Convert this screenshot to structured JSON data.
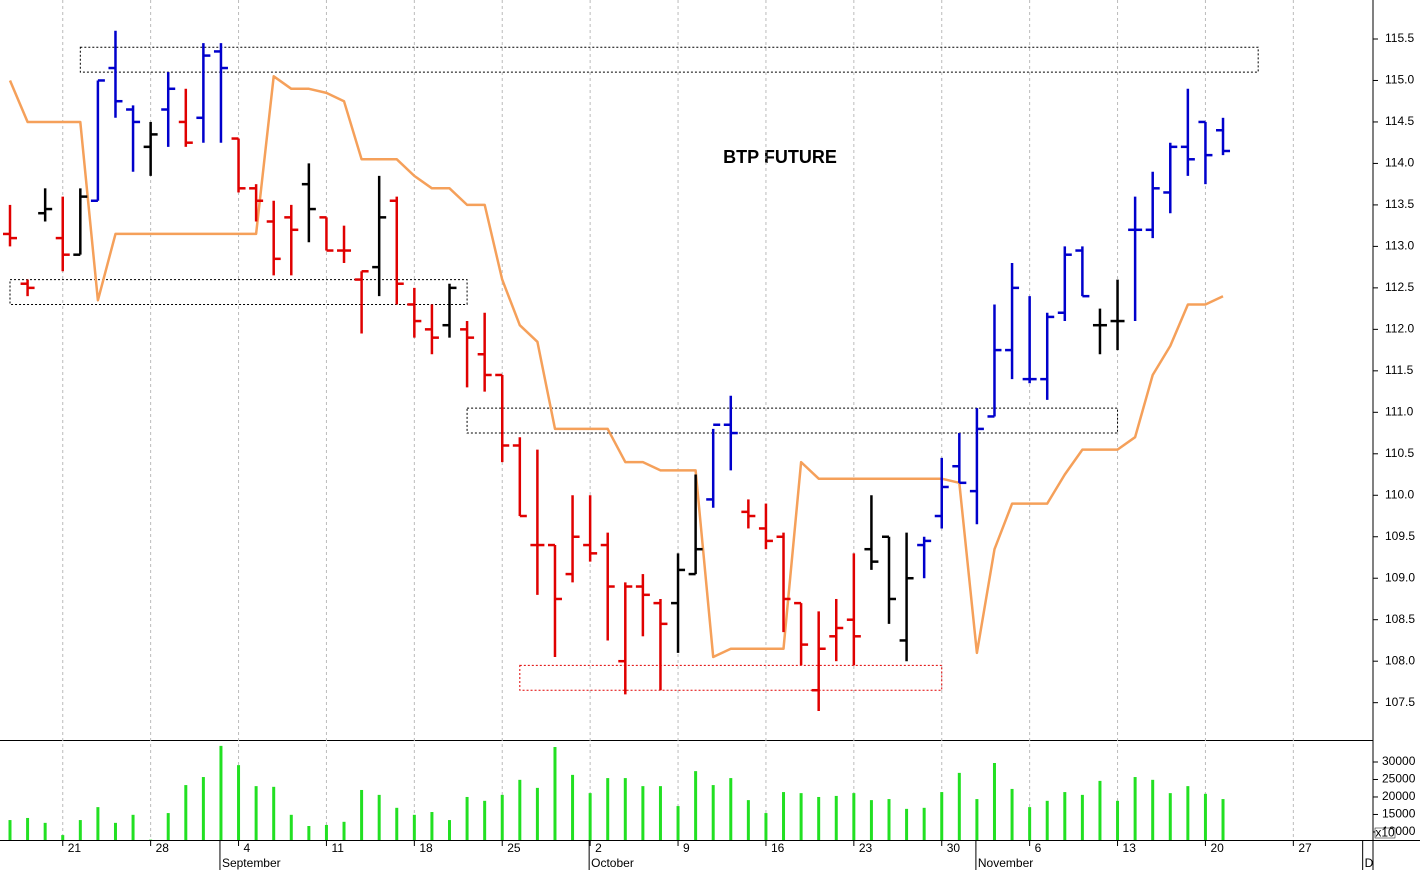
{
  "chart_data": {
    "type": "ohlc",
    "title": "BTP FUTURE",
    "categories": [
      null,
      null,
      null,
      "21",
      null,
      null,
      null,
      null,
      "28",
      null,
      null,
      null,
      null,
      "4",
      null,
      null,
      null,
      null,
      "11",
      null,
      null,
      null,
      null,
      "18",
      null,
      null,
      null,
      null,
      "25",
      null,
      null,
      null,
      null,
      "2",
      null,
      null,
      null,
      null,
      "9",
      null,
      null,
      null,
      null,
      "16",
      null,
      null,
      null,
      null,
      "23",
      null,
      null,
      null,
      null,
      "30",
      null,
      null,
      null,
      null,
      "6",
      null,
      null,
      null,
      null,
      "13",
      null,
      null,
      null,
      null,
      "20",
      null,
      null,
      null,
      null,
      "27",
      null,
      null,
      null,
      null
    ],
    "months": [
      null,
      null,
      null,
      null,
      null,
      null,
      null,
      null,
      null,
      null,
      null,
      null,
      "September",
      null,
      null,
      null,
      null,
      null,
      null,
      null,
      null,
      null,
      null,
      null,
      null,
      null,
      null,
      null,
      null,
      null,
      null,
      null,
      null,
      "October",
      null,
      null,
      null,
      null,
      null,
      null,
      null,
      null,
      null,
      null,
      null,
      null,
      null,
      null,
      null,
      null,
      null,
      null,
      null,
      null,
      null,
      "November",
      null,
      null,
      null,
      null,
      null,
      null,
      null,
      null,
      null,
      null,
      null,
      null,
      null,
      null,
      null,
      null,
      null,
      null,
      null,
      null,
      null,
      "D"
    ],
    "high": [
      113.5,
      112.6,
      113.7,
      113.6,
      113.7,
      115.0,
      115.6,
      114.7,
      114.5,
      115.1,
      114.9,
      115.45,
      115.45,
      114.3,
      113.75,
      113.55,
      113.5,
      114.0,
      113.35,
      113.25,
      112.7,
      113.85,
      113.6,
      112.5,
      112.3,
      112.55,
      112.1,
      112.2,
      111.45,
      110.7,
      110.55,
      109.4,
      110.0,
      110.0,
      109.55,
      108.95,
      109.05,
      108.75,
      109.3,
      110.25,
      110.8,
      111.2,
      109.95,
      109.9,
      109.55,
      108.7,
      108.6,
      108.75,
      109.3,
      110.0,
      109.5,
      109.55,
      109.5,
      110.45,
      110.75,
      111.05,
      112.3,
      112.8,
      112.4,
      112.2,
      113.0,
      113.0,
      112.25,
      112.6,
      113.6,
      113.9,
      114.25,
      114.9,
      114.5,
      114.55,
      null,
      null,
      null,
      null,
      null,
      null,
      null,
      null
    ],
    "low": [
      113.0,
      112.4,
      113.3,
      112.7,
      112.9,
      113.55,
      114.55,
      113.9,
      113.85,
      114.2,
      114.2,
      114.25,
      114.25,
      113.65,
      113.3,
      112.65,
      112.65,
      113.05,
      112.95,
      112.8,
      111.95,
      112.4,
      112.3,
      111.9,
      111.7,
      111.9,
      111.3,
      111.25,
      110.4,
      109.75,
      108.8,
      108.05,
      108.95,
      109.2,
      108.25,
      107.6,
      108.3,
      107.65,
      108.1,
      109.05,
      109.85,
      110.3,
      109.6,
      109.35,
      108.35,
      107.95,
      107.4,
      108.0,
      107.95,
      109.1,
      108.45,
      108.0,
      109.0,
      109.6,
      110.15,
      109.65,
      110.95,
      111.4,
      111.35,
      111.15,
      112.1,
      112.4,
      111.7,
      111.75,
      112.1,
      113.1,
      113.4,
      113.85,
      113.75,
      114.1,
      null,
      null,
      null,
      null,
      null,
      null,
      null,
      null
    ],
    "open": [
      113.15,
      112.55,
      113.4,
      113.1,
      112.9,
      113.55,
      115.15,
      114.65,
      114.2,
      114.65,
      114.5,
      114.55,
      115.35,
      114.3,
      113.7,
      113.3,
      113.35,
      113.75,
      113.35,
      112.95,
      112.6,
      112.75,
      113.55,
      112.3,
      112.0,
      112.05,
      112.0,
      111.7,
      111.45,
      110.6,
      109.4,
      109.4,
      109.05,
      109.4,
      109.4,
      108.0,
      108.9,
      108.7,
      108.7,
      109.05,
      109.95,
      110.85,
      109.8,
      109.6,
      109.5,
      108.7,
      107.65,
      108.3,
      108.5,
      109.35,
      109.5,
      108.25,
      109.4,
      109.75,
      110.35,
      110.05,
      110.95,
      111.75,
      111.4,
      111.4,
      112.2,
      112.95,
      112.05,
      112.1,
      113.2,
      113.2,
      113.65,
      114.2,
      114.5,
      114.4,
      null,
      null,
      null,
      null,
      null,
      null,
      null,
      null
    ],
    "close": [
      113.1,
      112.5,
      113.45,
      112.9,
      113.6,
      115.0,
      114.75,
      114.5,
      114.35,
      114.9,
      114.25,
      115.3,
      115.15,
      113.7,
      113.55,
      112.85,
      113.2,
      113.45,
      112.95,
      112.95,
      112.7,
      113.35,
      112.55,
      112.1,
      111.9,
      112.5,
      111.9,
      111.45,
      110.6,
      109.75,
      109.4,
      108.75,
      109.5,
      109.3,
      108.9,
      108.9,
      108.8,
      108.45,
      109.1,
      109.35,
      110.85,
      110.75,
      109.75,
      109.45,
      108.75,
      108.2,
      108.15,
      108.4,
      108.3,
      109.2,
      108.75,
      109.0,
      109.45,
      110.1,
      110.15,
      110.8,
      111.75,
      112.5,
      111.4,
      112.15,
      112.9,
      112.4,
      112.05,
      112.1,
      113.2,
      113.7,
      114.2,
      114.05,
      114.1,
      114.15,
      null,
      null,
      null,
      null,
      null,
      null,
      null,
      null
    ],
    "bar_colors": [
      "#e00000",
      "#e00000",
      "#000000",
      "#e00000",
      "#000000",
      "#0000cc",
      "#0000cc",
      "#0000cc",
      "#000000",
      "#0000cc",
      "#e00000",
      "#0000cc",
      "#0000cc",
      "#e00000",
      "#e00000",
      "#e00000",
      "#e00000",
      "#000000",
      "#e00000",
      "#e00000",
      "#e00000",
      "#000000",
      "#e00000",
      "#e00000",
      "#e00000",
      "#000000",
      "#e00000",
      "#e00000",
      "#e00000",
      "#e00000",
      "#e00000",
      "#e00000",
      "#e00000",
      "#e00000",
      "#e00000",
      "#e00000",
      "#e00000",
      "#e00000",
      "#000000",
      "#000000",
      "#0000cc",
      "#0000cc",
      "#e00000",
      "#e00000",
      "#e00000",
      "#e00000",
      "#e00000",
      "#e00000",
      "#e00000",
      "#000000",
      "#000000",
      "#000000",
      "#0000cc",
      "#0000cc",
      "#0000cc",
      "#0000cc",
      "#0000cc",
      "#0000cc",
      "#0000cc",
      "#0000cc",
      "#0000cc",
      "#0000cc",
      "#000000",
      "#000000",
      "#0000cc",
      "#0000cc",
      "#0000cc",
      "#0000cc",
      "#0000cc",
      "#0000cc",
      null,
      null,
      null,
      null,
      null,
      null,
      null,
      null
    ],
    "line": {
      "color": "#f5a05a",
      "values": [
        115.0,
        114.5,
        114.5,
        114.5,
        114.5,
        112.35,
        113.15,
        113.15,
        113.15,
        113.15,
        113.15,
        113.15,
        113.15,
        113.15,
        113.15,
        115.05,
        114.9,
        114.9,
        114.85,
        114.75,
        114.05,
        114.05,
        114.05,
        113.85,
        113.7,
        113.7,
        113.5,
        113.5,
        112.6,
        112.05,
        111.85,
        110.8,
        110.8,
        110.8,
        110.8,
        110.4,
        110.4,
        110.3,
        110.3,
        110.3,
        108.05,
        108.15,
        108.15,
        108.15,
        108.15,
        110.4,
        110.2,
        110.2,
        110.2,
        110.2,
        110.2,
        110.2,
        110.2,
        110.2,
        110.15,
        108.1,
        109.35,
        109.9,
        109.9,
        109.9,
        110.25,
        110.55,
        110.55,
        110.55,
        110.7,
        111.45,
        111.8,
        112.3,
        112.3,
        112.4,
        null,
        null,
        null,
        null,
        null,
        null,
        null,
        null
      ]
    },
    "zones": [
      {
        "start": 4,
        "end": 71,
        "top": 115.4,
        "bottom": 115.1,
        "color": "#000000"
      },
      {
        "start": 0,
        "end": 26,
        "top": 112.6,
        "bottom": 112.3,
        "color": "#000000"
      },
      {
        "start": 26,
        "end": 63,
        "top": 111.05,
        "bottom": 110.75,
        "color": "#000000"
      },
      {
        "start": 29,
        "end": 53,
        "top": 107.95,
        "bottom": 107.65,
        "color": "#e00000"
      }
    ],
    "ylim": [
      107.05,
      115.97
    ],
    "yticks": [
      115.5,
      {
        "value": 115.0,
        "label": "115.0"
      },
      114.5,
      {
        "value": 114.0,
        "label": "114.0"
      },
      113.5,
      {
        "value": 113.0,
        "label": "113.0"
      },
      112.5,
      {
        "value": 112.0,
        "label": "112.0"
      },
      111.5,
      {
        "value": 111.0,
        "label": "111.0"
      },
      110.5,
      {
        "value": 110.0,
        "label": "110.0"
      },
      109.5,
      {
        "value": 109.0,
        "label": "109.0"
      },
      108.5,
      {
        "value": 108.0,
        "label": "108.0"
      },
      107.5
    ],
    "volume": {
      "color": "#22e022",
      "multiplier_label": "x10",
      "values": [
        13400,
        14000,
        12600,
        9100,
        13400,
        17100,
        12600,
        14900,
        7800,
        15400,
        23400,
        25700,
        34600,
        29100,
        23100,
        22900,
        14900,
        11700,
        12000,
        12900,
        22000,
        20600,
        16900,
        14900,
        15700,
        13400,
        20000,
        18900,
        20600,
        24900,
        22600,
        34300,
        26300,
        21100,
        25400,
        25400,
        23100,
        23100,
        17400,
        27400,
        23400,
        25400,
        19100,
        15400,
        21400,
        21100,
        20000,
        20300,
        21100,
        19100,
        19400,
        16600,
        16900,
        21400,
        26900,
        19400,
        29700,
        22300,
        17100,
        18900,
        21400,
        20600,
        24600,
        18900,
        25700,
        24900,
        21100,
        23100,
        20900,
        19400,
        null,
        null,
        null,
        null,
        null,
        null,
        null,
        null
      ],
      "ylim": [
        7700,
        36000
      ],
      "yticks": [
        30000,
        25000,
        20000,
        15000,
        10000
      ]
    },
    "grid": true
  }
}
